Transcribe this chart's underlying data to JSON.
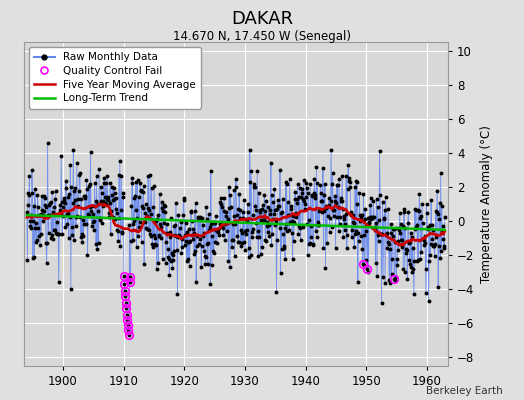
{
  "title": "DAKAR",
  "subtitle": "14.670 N, 17.450 W (Senegal)",
  "ylabel": "Temperature Anomaly (°C)",
  "credit": "Berkeley Earth",
  "xlim": [
    1893.5,
    1963.5
  ],
  "ylim": [
    -8.5,
    10.5
  ],
  "yticks": [
    -8,
    -6,
    -4,
    -2,
    0,
    2,
    4,
    6,
    8,
    10
  ],
  "xticks": [
    1900,
    1910,
    1920,
    1930,
    1940,
    1950,
    1960
  ],
  "bg_color": "#e0e0e0",
  "plot_bg_color": "#d8d8d8",
  "grid_color": "#ffffff",
  "raw_line_color": "#6688ee",
  "raw_dot_color": "#000000",
  "moving_avg_color": "#cc0000",
  "trend_color": "#00bb00",
  "qc_fail_color": "#ff00ff",
  "seed": 17,
  "start_year": 1894,
  "end_year": 1962
}
